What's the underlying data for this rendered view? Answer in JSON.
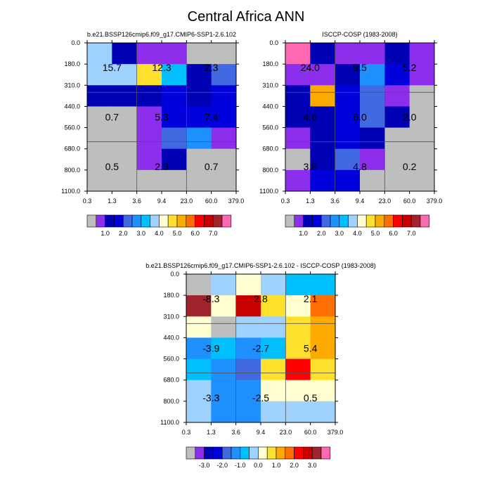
{
  "figure": {
    "title": "Central Africa ANN"
  },
  "colors": {
    "abs_scale": [
      "#bebebe",
      "#8c2eeb",
      "#0000b4",
      "#0000dc",
      "#4169e1",
      "#1e90ff",
      "#00bfff",
      "#a0d2ff",
      "#ffffd2",
      "#ffe12d",
      "#ffaa00",
      "#ff6e00",
      "#ff0000",
      "#c80000",
      "#a0232d",
      "#ff69b4"
    ],
    "diff_scale": [
      "#bebebe",
      "#8c2eeb",
      "#0000b4",
      "#0000dc",
      "#4169e1",
      "#1e90ff",
      "#00bfff",
      "#a0d2ff",
      "#ffffd2",
      "#ffe12d",
      "#ffaa00",
      "#ff6e00",
      "#ff0000",
      "#c80000",
      "#a0232d",
      "#ff69b4"
    ]
  },
  "chart_data": [
    {
      "type": "heatmap",
      "title": "b.e21.BSSP126cmip6.f09_g17.CMIP6-SSP1-2.6.102",
      "xlabel": "",
      "ylabel": "",
      "x_tick_labels": [
        "0.3",
        "1.3",
        "3.6",
        "9.4",
        "23.0",
        "60.0",
        "379.0"
      ],
      "y_tick_labels": [
        "0.0",
        "180.0",
        "310.0",
        "440.0",
        "560.0",
        "680.0",
        "800.0",
        "1100.0"
      ],
      "cell_color_index": [
        [
          7,
          2,
          1,
          1,
          0,
          0
        ],
        [
          7,
          7,
          9,
          6,
          2,
          4
        ],
        [
          2,
          2,
          2,
          3,
          2,
          3
        ],
        [
          0,
          0,
          1,
          3,
          3,
          3
        ],
        [
          0,
          0,
          1,
          4,
          5,
          1
        ],
        [
          0,
          0,
          1,
          2,
          0,
          0
        ],
        [
          0,
          0,
          0,
          0,
          0,
          0
        ]
      ],
      "block_values": [
        [
          "15.7",
          "12.3",
          "2.3"
        ],
        [
          "0.7",
          "5.3",
          "7.4"
        ],
        [
          "0.5",
          "2.3",
          "0.7"
        ]
      ],
      "colorbar_labels": [
        "1.0",
        "2.0",
        "3.0",
        "4.0",
        "5.0",
        "6.0",
        "7.0"
      ]
    },
    {
      "type": "heatmap",
      "title": "ISCCP-COSP (1983-2008)",
      "xlabel": "",
      "ylabel": "",
      "x_tick_labels": [
        "0.3",
        "1.3",
        "3.6",
        "9.4",
        "23.0",
        "60.0",
        "379.0"
      ],
      "y_tick_labels": [
        "0.0",
        "180.0",
        "310.0",
        "440.0",
        "560.0",
        "680.0",
        "800.0",
        "1100.0"
      ],
      "cell_color_index": [
        [
          15,
          2,
          1,
          1,
          2,
          1
        ],
        [
          1,
          1,
          2,
          5,
          3,
          1
        ],
        [
          2,
          10,
          3,
          4,
          1,
          0
        ],
        [
          2,
          2,
          3,
          4,
          2,
          0
        ],
        [
          1,
          2,
          3,
          2,
          0,
          0
        ],
        [
          0,
          2,
          4,
          1,
          0,
          0
        ],
        [
          1,
          3,
          3,
          0,
          0,
          0
        ]
      ],
      "block_values": [
        [
          "24.0",
          "9.5",
          "5.2"
        ],
        [
          "4.6",
          "6.0",
          "2.0"
        ],
        [
          "3.8",
          "4.8",
          "0.2"
        ]
      ],
      "colorbar_labels": [
        "1.0",
        "2.0",
        "3.0",
        "4.0",
        "5.0",
        "6.0",
        "7.0"
      ]
    },
    {
      "type": "heatmap",
      "title": "b.e21.BSSP126cmip6.f09_g17.CMIP6-SSP1-2.6.102 - ISCCP-COSP (1983-2008)",
      "xlabel": "",
      "ylabel": "",
      "x_tick_labels": [
        "0.3",
        "1.3",
        "3.6",
        "9.4",
        "23.0",
        "60.0",
        "379.0"
      ],
      "y_tick_labels": [
        "0.0",
        "180.0",
        "310.0",
        "440.0",
        "560.0",
        "680.0",
        "800.0",
        "1100.0"
      ],
      "cell_color_index": [
        [
          0,
          7,
          8,
          7,
          6,
          6
        ],
        [
          14,
          8,
          13,
          9,
          8,
          11
        ],
        [
          8,
          0,
          7,
          7,
          9,
          10
        ],
        [
          5,
          6,
          5,
          6,
          9,
          10
        ],
        [
          6,
          5,
          4,
          9,
          12,
          9
        ],
        [
          7,
          5,
          5,
          8,
          8,
          8
        ],
        [
          7,
          5,
          5,
          7,
          7,
          7
        ]
      ],
      "block_values": [
        [
          "-8.3",
          "2.8",
          "2.1"
        ],
        [
          "-3.9",
          "-2.7",
          "5.4"
        ],
        [
          "-3.3",
          "-2.5",
          "0.5"
        ]
      ],
      "colorbar_labels": [
        "-3.0",
        "-2.0",
        "-1.0",
        "0.0",
        "1.0",
        "2.0",
        "3.0"
      ]
    }
  ]
}
